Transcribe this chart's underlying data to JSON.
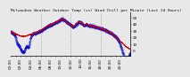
{
  "title": "Milwaukee Weather Outdoor Temp (vs) Wind Chill per Minute (Last 24 Hours)",
  "background_color": "#e8e8e8",
  "plot_background": "#e8e8e8",
  "grid_color": "#888888",
  "temp_color": "#cc0000",
  "windchill_color": "#0000cc",
  "ylim": [
    -8,
    58
  ],
  "ytick_values": [
    0,
    10,
    20,
    30,
    40,
    50
  ],
  "ytick_labels": [
    "0",
    "10",
    "20",
    "30",
    "40",
    "50"
  ],
  "n_points": 1440,
  "n_vgrid": 4,
  "title_fontsize": 3.2,
  "tick_fontsize": 3.0
}
